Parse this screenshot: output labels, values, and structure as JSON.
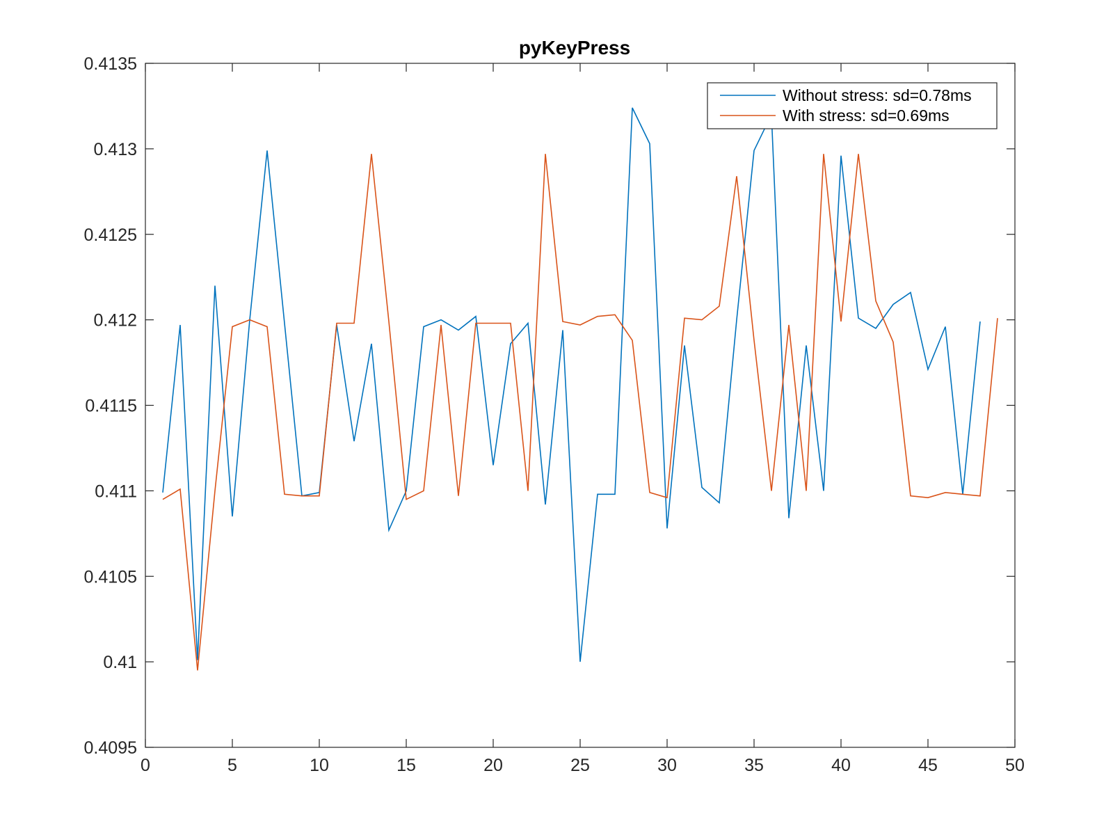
{
  "chart_data": {
    "type": "line",
    "title": "pyKeyPress",
    "xlabel": "",
    "ylabel": "",
    "xlim": [
      0,
      50
    ],
    "ylim": [
      0.4095,
      0.4135
    ],
    "xticks": [
      0,
      5,
      10,
      15,
      20,
      25,
      30,
      35,
      40,
      45,
      50
    ],
    "xtick_labels": [
      "0",
      "5",
      "10",
      "15",
      "20",
      "25",
      "30",
      "35",
      "40",
      "45",
      "50"
    ],
    "yticks": [
      0.4095,
      0.41,
      0.4105,
      0.411,
      0.4115,
      0.412,
      0.4125,
      0.413,
      0.4135
    ],
    "ytick_labels": [
      "0.4095",
      "0.41",
      "0.4105",
      "0.411",
      "0.4115",
      "0.412",
      "0.4125",
      "0.413",
      "0.4135"
    ],
    "grid": false,
    "legend_position": "top-right",
    "series": [
      {
        "name": "Without stress: sd=0.78ms",
        "color": "#0072BD",
        "x": [
          1,
          2,
          3,
          4,
          5,
          6,
          7,
          8,
          9,
          10,
          11,
          12,
          13,
          14,
          15,
          16,
          17,
          18,
          19,
          20,
          21,
          22,
          23,
          24,
          25,
          26,
          27,
          28,
          29,
          30,
          31,
          32,
          33,
          34,
          35,
          36,
          37,
          38,
          39,
          40,
          41,
          42,
          43,
          44,
          45,
          46,
          47,
          48
        ],
        "y": [
          0.41099,
          0.41197,
          0.41001,
          0.4122,
          0.41085,
          0.412,
          0.41299,
          0.41198,
          0.41097,
          0.41099,
          0.41197,
          0.41129,
          0.41186,
          0.41077,
          0.411,
          0.41196,
          0.412,
          0.41194,
          0.41202,
          0.41115,
          0.41186,
          0.41198,
          0.41092,
          0.41194,
          0.41,
          0.41098,
          0.41098,
          0.41324,
          0.41303,
          0.41078,
          0.41185,
          0.41102,
          0.41093,
          0.412,
          0.41299,
          0.4132,
          0.41084,
          0.41185,
          0.411,
          0.41296,
          0.41201,
          0.41195,
          0.41209,
          0.41216,
          0.41171,
          0.41196,
          0.41098,
          0.41199
        ]
      },
      {
        "name": "With stress: sd=0.69ms",
        "color": "#D95319",
        "x": [
          1,
          2,
          3,
          4,
          5,
          6,
          7,
          8,
          9,
          10,
          11,
          12,
          13,
          14,
          15,
          16,
          17,
          18,
          19,
          20,
          21,
          22,
          23,
          24,
          25,
          26,
          27,
          28,
          29,
          30,
          31,
          32,
          33,
          34,
          35,
          36,
          37,
          38,
          39,
          40,
          41,
          42,
          43,
          44,
          45,
          46,
          47,
          48,
          49
        ],
        "y": [
          0.41095,
          0.41101,
          0.40995,
          0.411,
          0.41196,
          0.412,
          0.41196,
          0.41098,
          0.41097,
          0.41097,
          0.41198,
          0.41198,
          0.41297,
          0.41199,
          0.41095,
          0.411,
          0.41197,
          0.41097,
          0.41198,
          0.41198,
          0.41198,
          0.411,
          0.41297,
          0.41199,
          0.41197,
          0.41202,
          0.41203,
          0.41188,
          0.41099,
          0.41096,
          0.41201,
          0.412,
          0.41208,
          0.41284,
          0.41188,
          0.411,
          0.41197,
          0.411,
          0.41297,
          0.41199,
          0.41297,
          0.41211,
          0.41187,
          0.41097,
          0.41096,
          0.41099,
          0.41098,
          0.41097,
          0.41201
        ]
      }
    ]
  }
}
